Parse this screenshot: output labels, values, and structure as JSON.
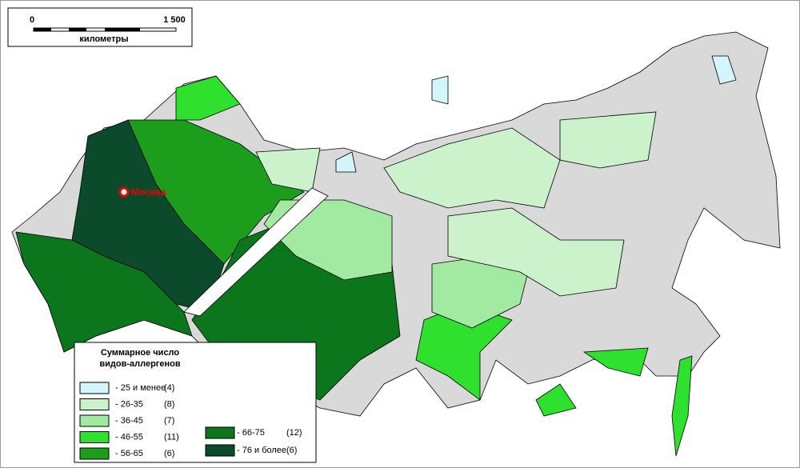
{
  "scale": {
    "start": "0",
    "end": "1 500",
    "unit": "километры"
  },
  "city": "Москва",
  "legend": {
    "title_line1": "Суммарное число",
    "title_line2": "видов-аллергенов",
    "items": [
      {
        "label": "- 25 и менее",
        "count": "(4)",
        "color": "#d2f6fb"
      },
      {
        "label": "- 26-35",
        "count": "(8)",
        "color": "#ccf2cc"
      },
      {
        "label": "- 36-45",
        "count": "(7)",
        "color": "#a2eaa2"
      },
      {
        "label": "- 46-55",
        "count": "(11)",
        "color": "#2fe02f"
      },
      {
        "label": "- 56-65",
        "count": "(6)",
        "color": "#1c9e1c"
      },
      {
        "label": "- 66-75",
        "count": "(12)",
        "color": "#0c761c"
      },
      {
        "label": "- 76 и более",
        "count": "(6)",
        "color": "#0b4a2a"
      }
    ]
  }
}
